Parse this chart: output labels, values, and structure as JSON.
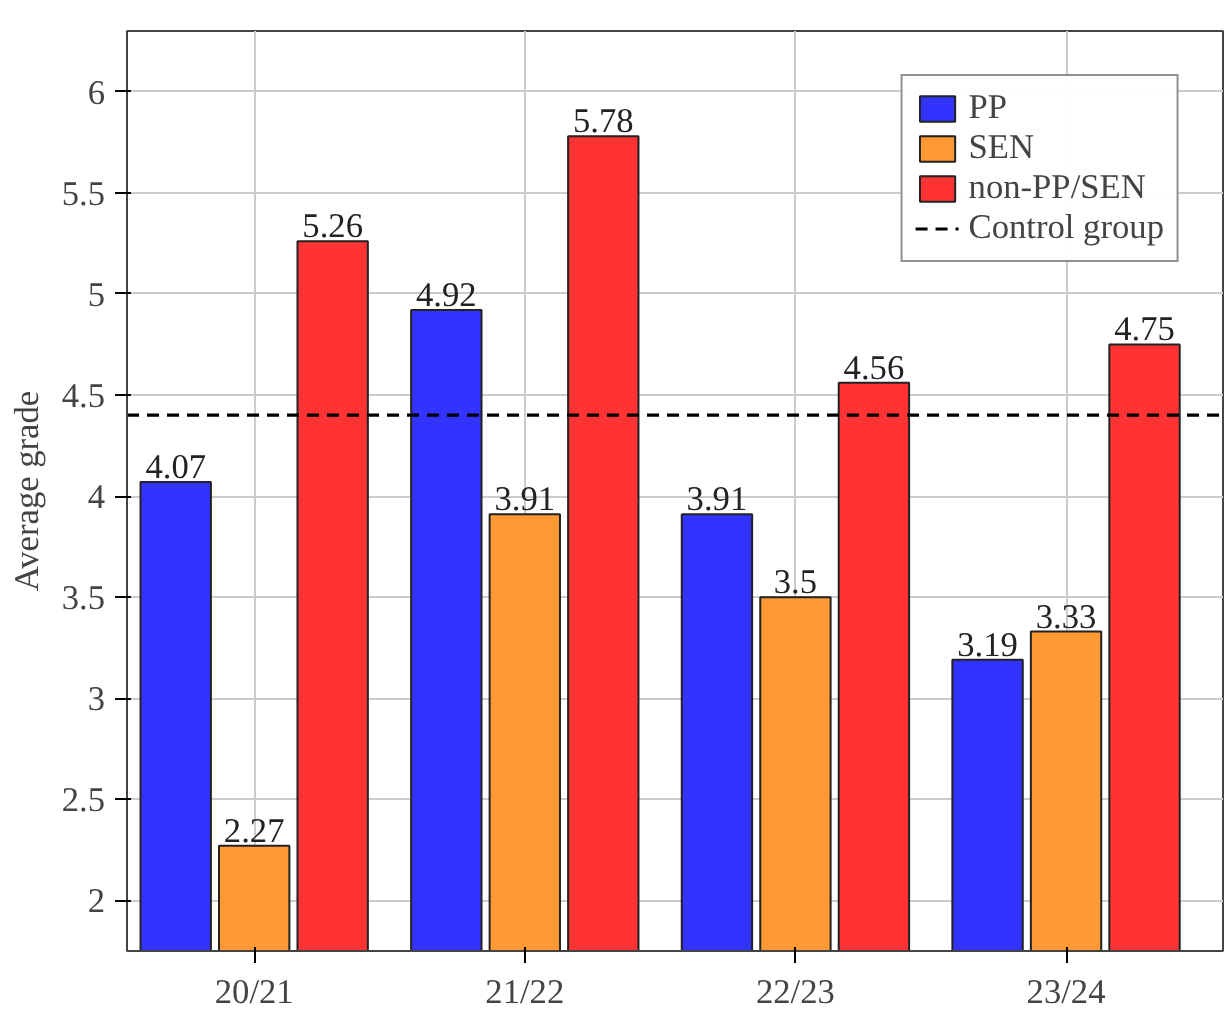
{
  "chart_data": {
    "type": "bar",
    "ylabel": "Average grade",
    "categories": [
      "20/21",
      "21/22",
      "22/23",
      "23/24"
    ],
    "series": [
      {
        "name": "PP",
        "color": "#3333ff",
        "values": [
          4.07,
          4.92,
          3.91,
          3.19
        ]
      },
      {
        "name": "SEN",
        "color": "#ff9933",
        "values": [
          2.27,
          3.91,
          3.5,
          3.33
        ]
      },
      {
        "name": "non-PP/SEN",
        "color": "#ff3333",
        "values": [
          5.26,
          5.78,
          4.56,
          4.75
        ]
      }
    ],
    "ref_lines": [
      {
        "axis": "y",
        "value": 4.4,
        "label": "Control group",
        "color": "#000000",
        "line_style": "dashed"
      }
    ],
    "ylim": [
      1.75,
      6.3
    ],
    "yticks": [
      2,
      2.5,
      3,
      3.5,
      4,
      4.5,
      5,
      5.5,
      6
    ],
    "data_labels": true,
    "grid": true,
    "legend": "top right"
  }
}
